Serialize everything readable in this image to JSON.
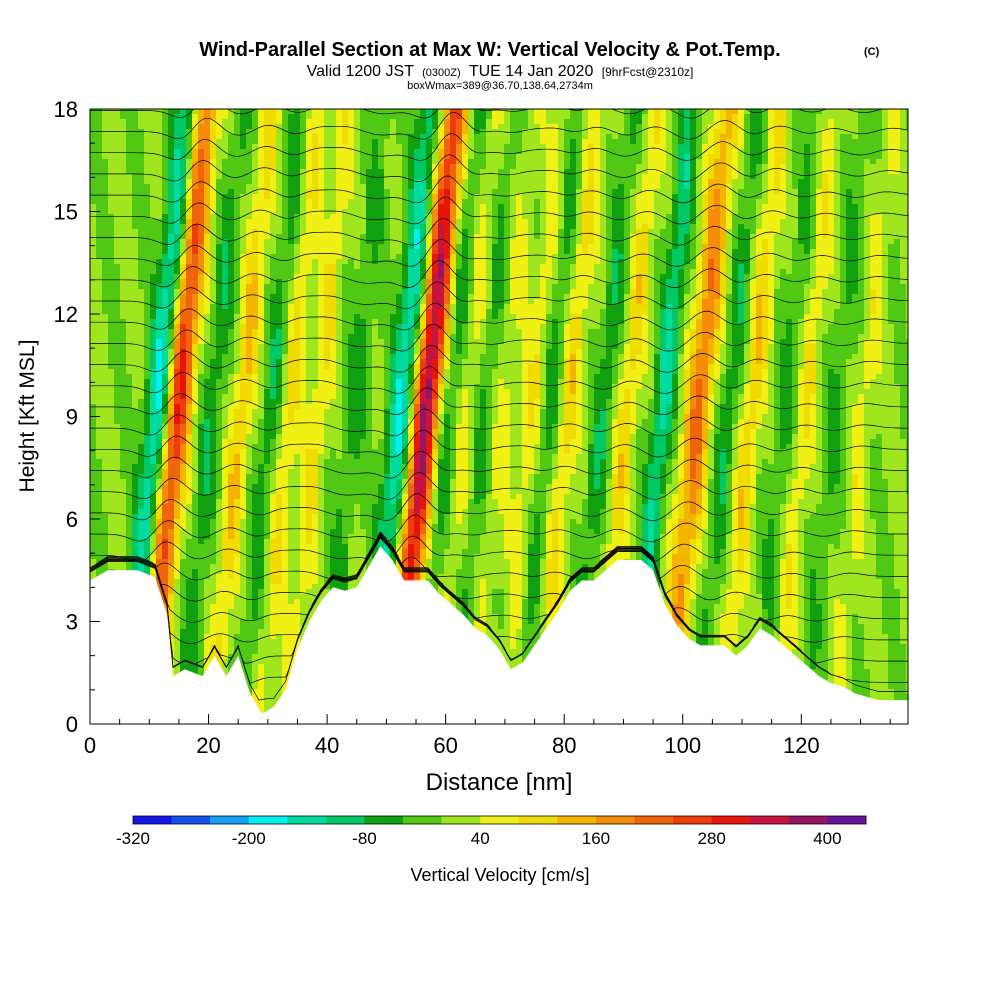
{
  "header": {
    "title": "Wind-Parallel Section at Max W: Vertical Velocity & Pot.Temp.",
    "copyright": "(C)",
    "valid_prefix": "Valid 1200 JST",
    "valid_utc": "(0300Z)",
    "valid_date": "TUE 14 Jan 2020",
    "forecast": "[9hrFcst@2310z]",
    "box_info": "boxWmax=389@36.70,138.64,2734m"
  },
  "chart_data": {
    "type": "heatmap",
    "xlabel": "Distance [nm]",
    "ylabel": "Height [Kft MSL]",
    "xlim": [
      0,
      138
    ],
    "ylim": [
      0,
      18
    ],
    "x_ticks": [
      0,
      20,
      40,
      60,
      80,
      100,
      120
    ],
    "y_ticks": [
      0,
      3,
      6,
      9,
      12,
      15,
      18
    ],
    "terrain_profile": {
      "x": [
        0,
        3,
        8,
        11,
        13,
        14,
        16,
        19,
        21,
        23,
        25,
        27,
        29,
        31,
        33,
        35,
        37,
        39,
        41,
        43,
        45,
        47,
        49,
        51,
        53,
        55,
        57,
        59,
        61,
        63,
        65,
        67,
        69,
        71,
        73,
        75,
        77,
        79,
        81,
        83,
        85,
        87,
        89,
        91,
        93,
        95,
        97,
        99,
        101,
        103,
        105,
        107,
        109,
        111,
        113,
        115,
        117,
        119,
        121,
        123,
        125,
        127,
        129,
        131,
        133,
        135,
        138
      ],
      "kft": [
        4.2,
        4.5,
        4.5,
        4.3,
        3.2,
        1.4,
        1.6,
        1.4,
        2.0,
        1.4,
        2.0,
        0.9,
        0.3,
        0.5,
        1.0,
        2.2,
        3.0,
        3.6,
        4.0,
        3.9,
        4.0,
        4.6,
        5.2,
        4.8,
        4.2,
        4.2,
        4.2,
        3.8,
        3.5,
        3.2,
        2.8,
        2.6,
        2.2,
        1.6,
        1.8,
        2.3,
        2.8,
        3.3,
        3.9,
        4.2,
        4.2,
        4.5,
        4.8,
        4.8,
        4.8,
        4.5,
        3.5,
        2.9,
        2.5,
        2.3,
        2.3,
        2.3,
        2.0,
        2.3,
        2.8,
        2.6,
        2.3,
        2.0,
        1.7,
        1.4,
        1.2,
        1.1,
        0.9,
        0.8,
        0.7,
        0.7,
        0.7
      ]
    },
    "updrafts": [
      {
        "x": 14,
        "w": 300
      },
      {
        "x": 25,
        "w": 120
      },
      {
        "x": 33,
        "w": 90
      },
      {
        "x": 38,
        "w": 80
      },
      {
        "x": 56,
        "w": 380
      },
      {
        "x": 63,
        "w": 60
      },
      {
        "x": 69,
        "w": 50
      },
      {
        "x": 74,
        "w": 70
      },
      {
        "x": 80,
        "w": 100
      },
      {
        "x": 90,
        "w": 100
      },
      {
        "x": 102,
        "w": 200
      },
      {
        "x": 111,
        "w": 110
      },
      {
        "x": 120,
        "w": 80
      },
      {
        "x": 130,
        "w": 60
      }
    ],
    "downdrafts": [
      {
        "x": 11,
        "w": -200
      },
      {
        "x": 20,
        "w": -80
      },
      {
        "x": 30,
        "w": -80
      },
      {
        "x": 44,
        "w": -60
      },
      {
        "x": 52,
        "w": -180
      },
      {
        "x": 60,
        "w": -80
      },
      {
        "x": 66,
        "w": -60
      },
      {
        "x": 77,
        "w": -70
      },
      {
        "x": 86,
        "w": -80
      },
      {
        "x": 96,
        "w": -140
      },
      {
        "x": 107,
        "w": -80
      },
      {
        "x": 117,
        "w": -60
      },
      {
        "x": 125,
        "w": -50
      }
    ],
    "colorbar": {
      "label": "Vertical Velocity [cm/s]",
      "tick_labels": [
        "-320",
        "-200",
        "-80",
        "40",
        "160",
        "280",
        "400"
      ],
      "tick_values": [
        -320,
        -200,
        -80,
        40,
        160,
        280,
        400
      ],
      "levels": [
        -320,
        -280,
        -240,
        -200,
        -160,
        -120,
        -80,
        -40,
        0,
        40,
        80,
        120,
        160,
        200,
        240,
        280,
        320,
        360,
        400
      ],
      "colors": [
        "#1414e6",
        "#1450f0",
        "#14a0f5",
        "#00f0f0",
        "#00dca0",
        "#00c864",
        "#10a010",
        "#50c814",
        "#a0e61e",
        "#f0f014",
        "#f0dc00",
        "#f5b400",
        "#f58c0a",
        "#f0640a",
        "#f03c0a",
        "#e6140a",
        "#c8143c",
        "#961464",
        "#641496"
      ]
    }
  }
}
